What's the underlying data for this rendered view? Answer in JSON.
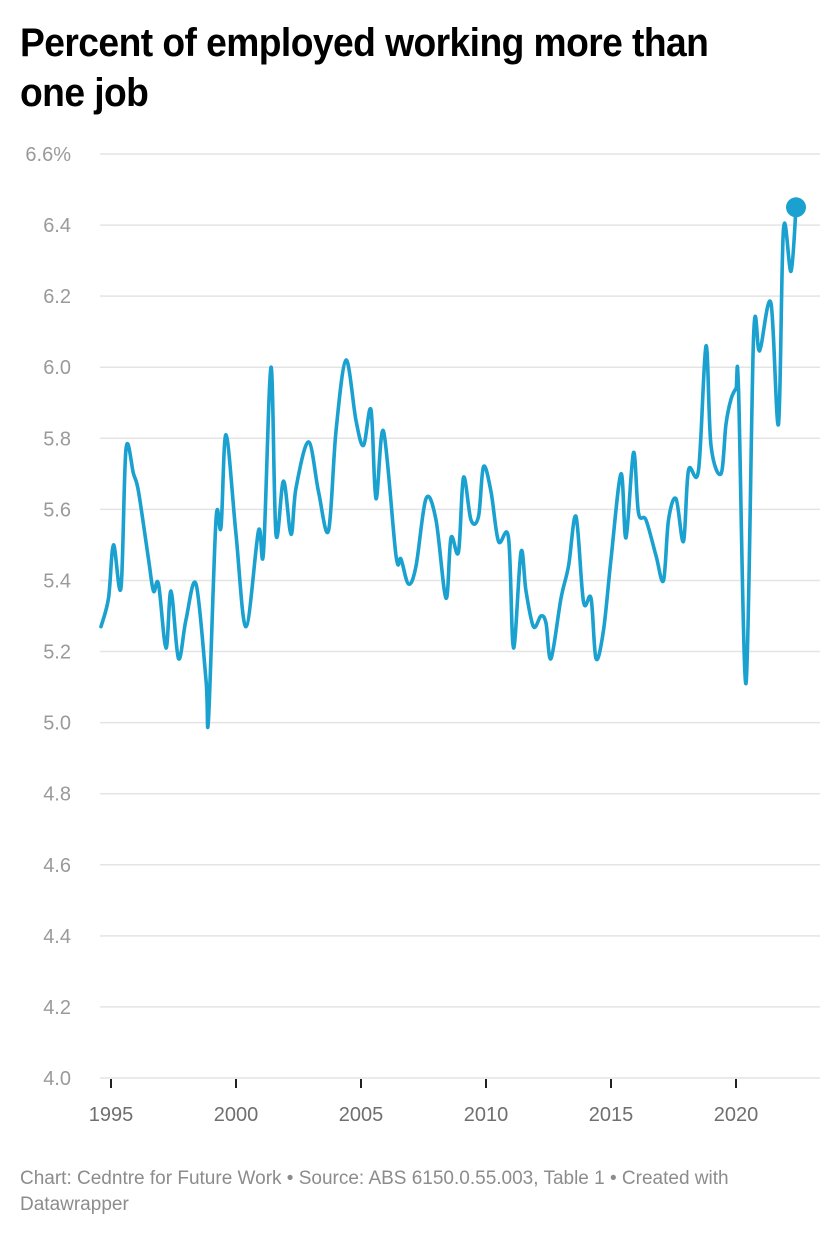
{
  "header": {
    "title": "Percent of employed working more than one job"
  },
  "footer": {
    "text": "Chart: Cedntre for Future Work • Source: ABS 6150.0.55.003, Table 1 • Created with Datawrapper"
  },
  "colors": {
    "line": "#1aa1cf",
    "grid": "#e4e4e4",
    "y_tick_text": "#9a9a9a",
    "x_tick_text": "#6f6f6f",
    "x_tick_mark": "#222222",
    "title": "#000000",
    "footer_text": "#8c8c8c"
  },
  "chart_data": {
    "type": "line",
    "title": "Percent of employed working more than one job",
    "xlabel": "",
    "ylabel": "",
    "ylim": [
      4.0,
      6.6
    ],
    "xlim": [
      1994.4,
      2022.8
    ],
    "y_ticks": [
      "4.0",
      "4.2",
      "4.4",
      "4.6",
      "4.8",
      "5.0",
      "5.2",
      "5.4",
      "5.6",
      "5.8",
      "6.0",
      "6.2",
      "6.4",
      "6.6%"
    ],
    "y_tick_values": [
      4.0,
      4.2,
      4.4,
      4.6,
      4.8,
      5.0,
      5.2,
      5.4,
      5.6,
      5.8,
      6.0,
      6.2,
      6.4,
      6.6
    ],
    "x_ticks": [
      "1995",
      "2000",
      "2005",
      "2010",
      "2015",
      "2020"
    ],
    "x_tick_values": [
      1995,
      2000,
      2005,
      2010,
      2015,
      2020
    ],
    "grid": true,
    "legend": "none",
    "end_point_marker": true,
    "series": [
      {
        "name": "Percent of employed working more than one job",
        "x": [
          1994.6,
          1994.9,
          1995.1,
          1995.4,
          1995.6,
          1995.9,
          1996.1,
          1996.5,
          1996.7,
          1996.9,
          1997.2,
          1997.4,
          1997.7,
          1998.0,
          1998.4,
          1998.8,
          1998.9,
          1999.2,
          1999.4,
          1999.6,
          2000.0,
          2000.4,
          2000.9,
          2001.1,
          2001.4,
          2001.6,
          2001.9,
          2002.2,
          2002.4,
          2002.9,
          2003.3,
          2003.7,
          2004.0,
          2004.4,
          2004.8,
          2005.1,
          2005.4,
          2005.6,
          2005.9,
          2006.4,
          2006.6,
          2006.9,
          2007.2,
          2007.6,
          2008.0,
          2008.4,
          2008.6,
          2008.9,
          2009.1,
          2009.4,
          2009.7,
          2009.9,
          2010.2,
          2010.5,
          2010.9,
          2011.1,
          2011.4,
          2011.6,
          2011.9,
          2012.2,
          2012.4,
          2012.6,
          2013.0,
          2013.3,
          2013.6,
          2013.9,
          2014.2,
          2014.4,
          2014.7,
          2015.0,
          2015.4,
          2015.6,
          2015.9,
          2016.1,
          2016.4,
          2016.8,
          2017.1,
          2017.3,
          2017.6,
          2017.9,
          2018.1,
          2018.5,
          2018.8,
          2019.0,
          2019.4,
          2019.6,
          2019.8,
          2020.0,
          2020.1,
          2020.4,
          2020.7,
          2020.9,
          2021.0,
          2021.4,
          2021.7,
          2021.9,
          2022.2,
          2022.4
        ],
        "values": [
          5.27,
          5.35,
          5.5,
          5.38,
          5.77,
          5.7,
          5.65,
          5.46,
          5.37,
          5.39,
          5.21,
          5.37,
          5.18,
          5.29,
          5.39,
          5.12,
          5.01,
          5.57,
          5.55,
          5.81,
          5.53,
          5.27,
          5.54,
          5.48,
          6.0,
          5.53,
          5.68,
          5.53,
          5.66,
          5.79,
          5.65,
          5.54,
          5.82,
          6.02,
          5.85,
          5.78,
          5.88,
          5.63,
          5.82,
          5.47,
          5.46,
          5.39,
          5.44,
          5.63,
          5.57,
          5.35,
          5.52,
          5.48,
          5.69,
          5.57,
          5.58,
          5.72,
          5.65,
          5.51,
          5.52,
          5.21,
          5.48,
          5.37,
          5.27,
          5.3,
          5.28,
          5.18,
          5.35,
          5.44,
          5.58,
          5.34,
          5.35,
          5.18,
          5.26,
          5.46,
          5.7,
          5.52,
          5.76,
          5.59,
          5.57,
          5.47,
          5.4,
          5.57,
          5.63,
          5.51,
          5.71,
          5.71,
          6.06,
          5.78,
          5.7,
          5.84,
          5.91,
          5.94,
          5.94,
          5.11,
          6.08,
          6.05,
          6.06,
          6.18,
          5.84,
          6.39,
          6.27,
          6.45
        ]
      }
    ]
  }
}
